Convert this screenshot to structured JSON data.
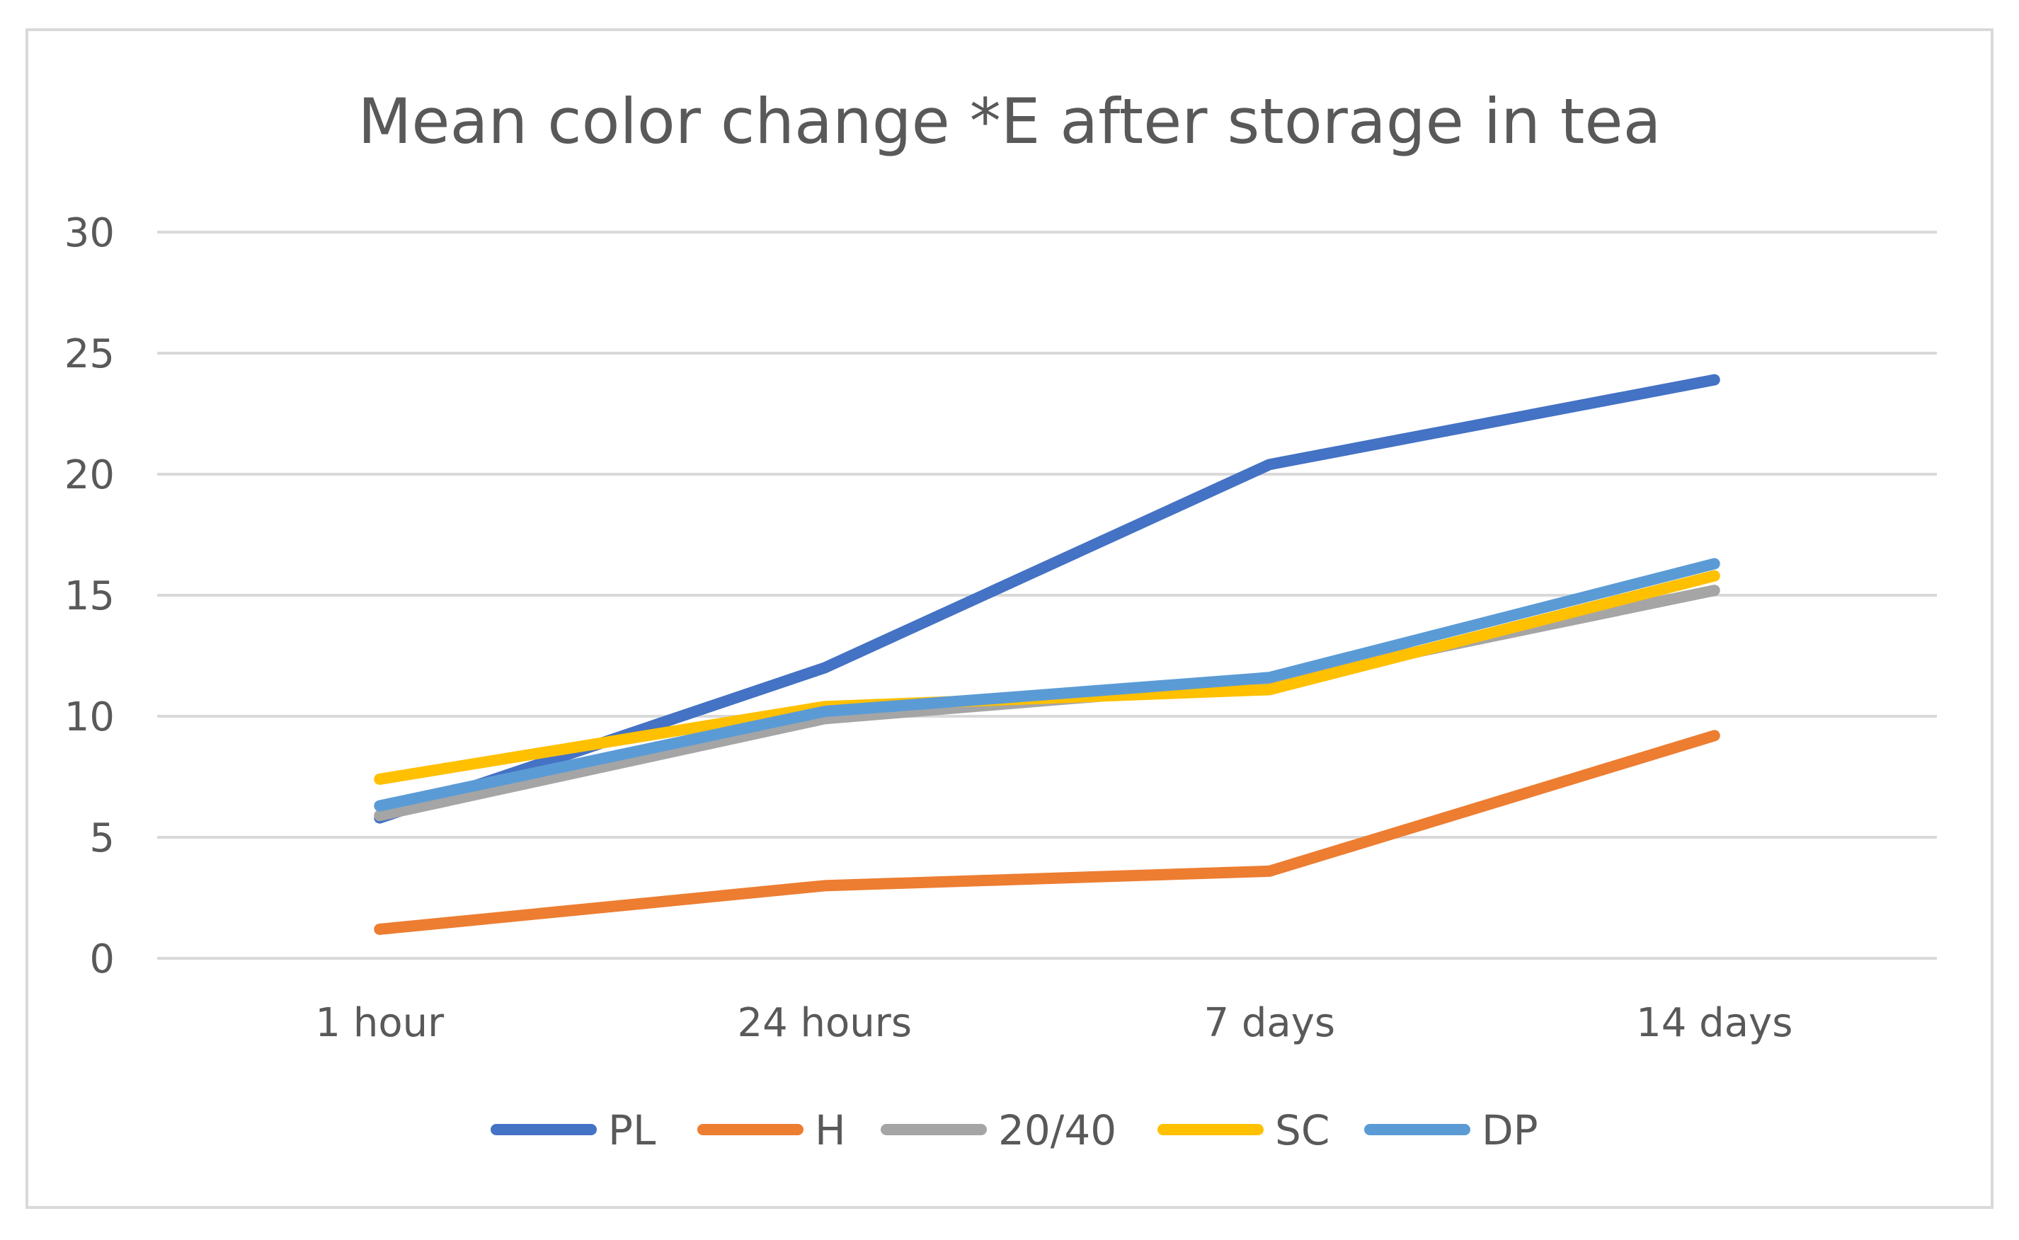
{
  "chart_data": {
    "type": "line",
    "title": "Mean color change *E after storage in tea",
    "xlabel": "",
    "ylabel": "",
    "categories": [
      "1 hour",
      "24 hours",
      "7 days",
      "14 days"
    ],
    "ylim": [
      0,
      30
    ],
    "yticks": [
      0,
      5,
      10,
      15,
      20,
      25,
      30
    ],
    "grid": true,
    "legend_position": "bottom",
    "series": [
      {
        "name": "PL",
        "color": "#4472C4",
        "values": [
          5.8,
          12.0,
          20.4,
          23.9
        ]
      },
      {
        "name": "H",
        "color": "#ED7D31",
        "values": [
          1.2,
          3.0,
          3.6,
          9.2
        ]
      },
      {
        "name": "20/40",
        "color": "#A5A5A5",
        "values": [
          5.9,
          9.9,
          11.4,
          15.2
        ]
      },
      {
        "name": "SC",
        "color": "#FFC000",
        "values": [
          7.4,
          10.4,
          11.1,
          15.8
        ]
      },
      {
        "name": "DP",
        "color": "#5B9BD5",
        "values": [
          6.3,
          10.2,
          11.6,
          16.3
        ]
      }
    ]
  }
}
